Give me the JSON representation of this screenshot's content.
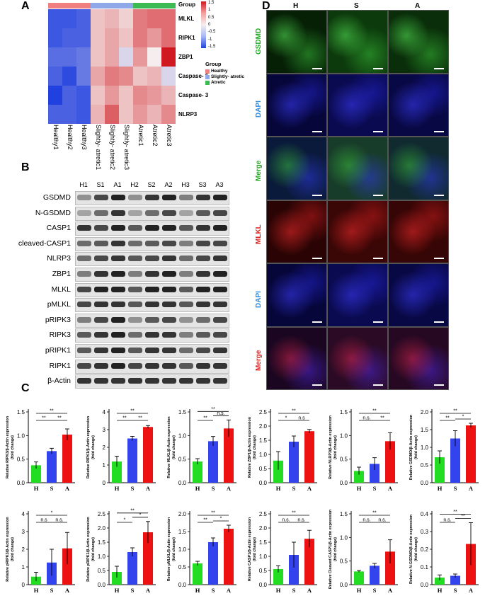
{
  "panels": {
    "a": "A",
    "b": "B",
    "c": "C",
    "d": "D"
  },
  "heatmap": {
    "group_header": "Group",
    "rows": [
      "MLKL",
      "RIPK1",
      "ZBP1",
      "Caspase- 6",
      "Caspase- 3",
      "NLRP3"
    ],
    "columns": [
      "Healthy1",
      "Healthy2",
      "Healthy3",
      "Slightly- atretic1",
      "Slightly- atretic2",
      "Slightly- atretic3",
      "Atretic1",
      "Atretic2",
      "Atretic3"
    ],
    "values": [
      [
        -1.3,
        -1.3,
        -1.2,
        0.3,
        0.4,
        0.2,
        0.8,
        0.9,
        0.9
      ],
      [
        -1.3,
        -1.2,
        -1.2,
        0.3,
        0.5,
        0.3,
        0.8,
        0.6,
        0.9
      ],
      [
        -1.1,
        -1.1,
        -1.0,
        0.3,
        0.5,
        -0.2,
        0.6,
        0.0,
        1.5
      ],
      [
        -1.2,
        -1.4,
        -1.0,
        0.5,
        0.8,
        0.7,
        0.3,
        0.4,
        -0.2
      ],
      [
        -1.5,
        -1.2,
        -1.3,
        0.3,
        0.6,
        0.3,
        0.7,
        0.6,
        0.4
      ],
      [
        -1.2,
        -1.2,
        -1.3,
        0.4,
        1.0,
        0.3,
        0.6,
        0.4,
        0.7
      ]
    ],
    "scale_ticks": [
      "1.5",
      "1",
      "0.5",
      "0",
      "-0.5",
      "-1",
      "-1.5"
    ],
    "legend_title": "Group",
    "legend_items": [
      {
        "label": "Healthy",
        "color": "#f08080"
      },
      {
        "label": "Slightly- atretic",
        "color": "#8fa8e8"
      },
      {
        "label": "Atretic",
        "color": "#3cba54"
      }
    ]
  },
  "western": {
    "lanes": [
      "H1",
      "S1",
      "A1",
      "H2",
      "S2",
      "A2",
      "H3",
      "S3",
      "A3"
    ],
    "proteins": [
      "GSDMD",
      "N-GSDMD",
      "CASP1",
      "cleaved-CASP1",
      "NLRP3",
      "ZBP1",
      "MLKL",
      "pMLKL",
      "pRIPK3",
      "RIPK3",
      "pRIPK1",
      "RIPK1",
      "β-Actin"
    ]
  },
  "fluorescence": {
    "columns": [
      "H",
      "S",
      "A"
    ],
    "rows": [
      {
        "label": "GSDMD",
        "color": "#22aa22"
      },
      {
        "label": "DAPI",
        "color": "#2a8ee0"
      },
      {
        "label": "Merge",
        "color": "#22aa22"
      },
      {
        "label": "MLKL",
        "color": "#e02020"
      },
      {
        "label": "DAPI",
        "color": "#2a8ee0"
      },
      {
        "label": "Merge",
        "color": "#e02020"
      }
    ]
  },
  "chart_data": [
    {
      "type": "bar",
      "ylabel": "Relative RIPK3/β-Actin expression (fold change)",
      "categories": [
        "H",
        "S",
        "A"
      ],
      "values": [
        0.37,
        0.67,
        1.02
      ],
      "errors": [
        0.07,
        0.06,
        0.12
      ],
      "ylim": [
        0,
        1.5
      ],
      "yticks": [
        "0.0",
        "0.5",
        "1.0",
        "1.5"
      ],
      "sig": [
        {
          "a": 0,
          "b": 2,
          "t": "**"
        },
        {
          "a": 0,
          "b": 1,
          "t": "**"
        },
        {
          "a": 1,
          "b": 2,
          "t": "**"
        }
      ]
    },
    {
      "type": "bar",
      "ylabel": "Relative RIPK1/β-Actin expression (fold change)",
      "categories": [
        "H",
        "S",
        "A"
      ],
      "values": [
        1.2,
        2.5,
        3.15
      ],
      "errors": [
        0.3,
        0.12,
        0.08
      ],
      "ylim": [
        0,
        4
      ],
      "yticks": [
        "0",
        "1",
        "2",
        "3",
        "4"
      ],
      "sig": [
        {
          "a": 0,
          "b": 2,
          "t": "**"
        },
        {
          "a": 0,
          "b": 1,
          "t": "**"
        },
        {
          "a": 1,
          "b": 2,
          "t": "**"
        }
      ]
    },
    {
      "type": "bar",
      "ylabel": "Relative MLKL/β-Actin expression (fold change)",
      "categories": [
        "H",
        "S",
        "A"
      ],
      "values": [
        0.45,
        0.88,
        1.15
      ],
      "errors": [
        0.06,
        0.1,
        0.18
      ],
      "ylim": [
        0,
        1.5
      ],
      "yticks": [
        "0.0",
        "0.5",
        "1.0",
        "1.5"
      ],
      "sig": [
        {
          "a": 0,
          "b": 2,
          "t": "**"
        },
        {
          "a": 0,
          "b": 1,
          "t": "**"
        },
        {
          "a": 1,
          "b": 2,
          "t": "n.s."
        }
      ]
    },
    {
      "type": "bar",
      "ylabel": "Relative ZBP1/β-Actin expression (fold change)",
      "categories": [
        "H",
        "S",
        "A"
      ],
      "values": [
        0.78,
        1.45,
        1.82
      ],
      "errors": [
        0.32,
        0.2,
        0.06
      ],
      "ylim": [
        0,
        2.5
      ],
      "yticks": [
        "0.0",
        "0.5",
        "1.0",
        "1.5",
        "2.0",
        "2.5"
      ],
      "sig": [
        {
          "a": 0,
          "b": 2,
          "t": "**"
        },
        {
          "a": 0,
          "b": 1,
          "t": "*"
        },
        {
          "a": 1,
          "b": 2,
          "t": "n.s"
        }
      ]
    },
    {
      "type": "bar",
      "ylabel": "Relative NLRP3/β-Actin expression (fold change)",
      "categories": [
        "H",
        "S",
        "A"
      ],
      "values": [
        0.25,
        0.4,
        0.88
      ],
      "errors": [
        0.08,
        0.13,
        0.18
      ],
      "ylim": [
        0,
        1.5
      ],
      "yticks": [
        "0.0",
        "0.5",
        "1.0",
        "1.5"
      ],
      "sig": [
        {
          "a": 0,
          "b": 2,
          "t": "**"
        },
        {
          "a": 0,
          "b": 1,
          "t": "n.s."
        },
        {
          "a": 1,
          "b": 2,
          "t": "**"
        }
      ]
    },
    {
      "type": "bar",
      "ylabel": "Relative GSDMD/β-Actin expression (fold change)",
      "categories": [
        "H",
        "S",
        "A"
      ],
      "values": [
        0.72,
        1.25,
        1.62
      ],
      "errors": [
        0.18,
        0.22,
        0.06
      ],
      "ylim": [
        0,
        2.0
      ],
      "yticks": [
        "0.0",
        "0.5",
        "1.0",
        "1.5",
        "2.0"
      ],
      "sig": [
        {
          "a": 0,
          "b": 2,
          "t": "**"
        },
        {
          "a": 0,
          "b": 1,
          "t": "**"
        },
        {
          "a": 1,
          "b": 2,
          "t": "*"
        }
      ]
    },
    {
      "type": "bar",
      "ylabel": "Relative pRIPK3/β-Actin expression (fold change)",
      "categories": [
        "H",
        "S",
        "A"
      ],
      "values": [
        0.45,
        1.25,
        2.05
      ],
      "errors": [
        0.25,
        0.75,
        0.9
      ],
      "ylim": [
        0,
        4
      ],
      "yticks": [
        "0",
        "1",
        "2",
        "3",
        "4"
      ],
      "sig": [
        {
          "a": 0,
          "b": 2,
          "t": "*"
        },
        {
          "a": 0,
          "b": 1,
          "t": "n.s"
        },
        {
          "a": 1,
          "b": 2,
          "t": "n.s."
        }
      ]
    },
    {
      "type": "bar",
      "ylabel": "Relative pRIPK1/β-Actin expression (fold change)",
      "categories": [
        "H",
        "S",
        "A"
      ],
      "values": [
        0.45,
        1.15,
        1.85
      ],
      "errors": [
        0.2,
        0.15,
        0.38
      ],
      "ylim": [
        0,
        2.5
      ],
      "yticks": [
        "0.0",
        "0.5",
        "1.0",
        "1.5",
        "2.0",
        "2.5"
      ],
      "sig": [
        {
          "a": 0,
          "b": 2,
          "t": "**"
        },
        {
          "a": 0,
          "b": 1,
          "t": "*"
        },
        {
          "a": 1,
          "b": 2,
          "t": "*"
        }
      ]
    },
    {
      "type": "bar",
      "ylabel": "Relative pMLKL/β-Actin expression (fold change)",
      "categories": [
        "H",
        "S",
        "A"
      ],
      "values": [
        0.6,
        1.2,
        1.58
      ],
      "errors": [
        0.06,
        0.12,
        0.1
      ],
      "ylim": [
        0,
        2.0
      ],
      "yticks": [
        "0.0",
        "0.5",
        "1.0",
        "1.5",
        "2.0"
      ],
      "sig": [
        {
          "a": 0,
          "b": 2,
          "t": "**"
        },
        {
          "a": 0,
          "b": 1,
          "t": "**"
        },
        {
          "a": 1,
          "b": 2,
          "t": "*"
        }
      ]
    },
    {
      "type": "bar",
      "ylabel": "Relative CASP1/β-Actin expression (fold change)",
      "categories": [
        "H",
        "S",
        "A"
      ],
      "values": [
        0.55,
        1.05,
        1.62
      ],
      "errors": [
        0.12,
        0.45,
        0.3
      ],
      "ylim": [
        0,
        2.5
      ],
      "yticks": [
        "0.0",
        "0.5",
        "1.0",
        "1.5",
        "2.0",
        "2.5"
      ],
      "sig": [
        {
          "a": 0,
          "b": 2,
          "t": "**"
        },
        {
          "a": 0,
          "b": 1,
          "t": "n.s."
        },
        {
          "a": 1,
          "b": 2,
          "t": "n.s."
        }
      ]
    },
    {
      "type": "bar",
      "ylabel": "Relative Cleaved CASP1/β-Actin expression (fold change)",
      "categories": [
        "H",
        "S",
        "A"
      ],
      "values": [
        0.28,
        0.4,
        0.7
      ],
      "errors": [
        0.02,
        0.05,
        0.25
      ],
      "ylim": [
        0,
        1.5
      ],
      "yticks": [
        "0.0",
        "0.5",
        "1.0",
        "1.5"
      ],
      "sig": [
        {
          "a": 0,
          "b": 2,
          "t": "**"
        },
        {
          "a": 0,
          "b": 1,
          "t": "n.s."
        },
        {
          "a": 1,
          "b": 2,
          "t": "n.s."
        }
      ]
    },
    {
      "type": "bar",
      "ylabel": "Relative N-GSDMD/β-Actin expression (fold change)",
      "categories": [
        "H",
        "S",
        "A"
      ],
      "values": [
        0.04,
        0.05,
        0.23
      ],
      "errors": [
        0.015,
        0.01,
        0.12
      ],
      "ylim": [
        0,
        0.4
      ],
      "yticks": [
        "0.0",
        "0.1",
        "0.2",
        "0.3",
        "0.4"
      ],
      "sig": [
        {
          "a": 0,
          "b": 2,
          "t": "**"
        },
        {
          "a": 0,
          "b": 1,
          "t": "n.s."
        },
        {
          "a": 1,
          "b": 2,
          "t": "**"
        }
      ]
    }
  ]
}
